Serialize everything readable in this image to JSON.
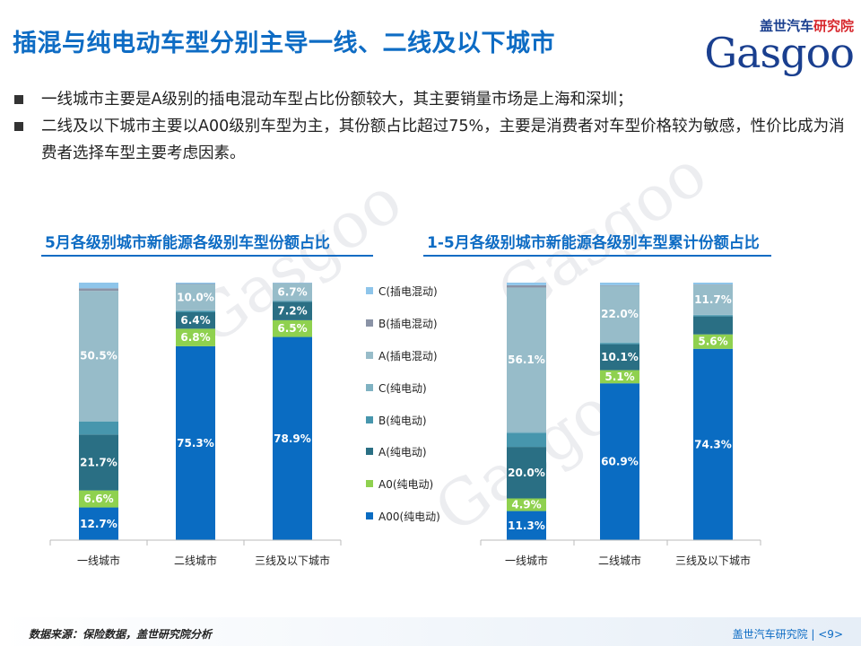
{
  "title": "插混与纯电动车型分别主导一线、二线及以下城市",
  "logo": {
    "brand": "盖世汽车",
    "dept": "研究院",
    "word": "Gasgoo"
  },
  "bullets": [
    "一线城市主要是A级别的插电混动车型占比份额较大，其主要销量市场是上海和深圳；",
    "二线及以下城市主要以A00级别车型为主，其份额占比超过75%，主要是消费者对车型价格较为敏感，性价比成为消费者选择车型主要考虑因素。"
  ],
  "source": "数据来源：保险数据，盖世研究院分析",
  "page": "盖世汽车研究院 | <9>",
  "colors": {
    "C(插电混动)": "#8ec5ea",
    "B(插电混动)": "#8a93a6",
    "A(插电混动)": "#97bcc9",
    "C(纯电动)": "#7fb2c2",
    "B(纯电动)": "#4796ad",
    "A(纯电动)": "#2a6f84",
    "A0(纯电动)": "#8fd14f",
    "A00(纯电动)": "#0a6cc2"
  },
  "legend": [
    "C(插电混动)",
    "B(插电混动)",
    "A(插电混动)",
    "C(纯电动)",
    "B(纯电动)",
    "A(纯电动)",
    "A0(纯电动)",
    "A00(纯电动)"
  ],
  "chart_data": [
    {
      "type": "bar",
      "stacked": true,
      "percent": true,
      "title": "5月各级别城市新能源各级别车型份额占比",
      "categories": [
        "一线城市",
        "二线城市",
        "三线及以下城市"
      ],
      "ylim": [
        0,
        100
      ],
      "series": [
        {
          "name": "A00(纯电动)",
          "values": [
            12.7,
            75.3,
            78.9
          ]
        },
        {
          "name": "A0(纯电动)",
          "values": [
            6.6,
            6.8,
            6.5
          ]
        },
        {
          "name": "A(纯电动)",
          "values": [
            21.7,
            6.4,
            7.2
          ]
        },
        {
          "name": "B(纯电动)",
          "values": [
            5.0,
            0.5,
            0.3
          ]
        },
        {
          "name": "C(纯电动)",
          "values": [
            0.3,
            0.3,
            0.1
          ]
        },
        {
          "name": "A(插电混动)",
          "values": [
            50.5,
            10.0,
            6.7
          ]
        },
        {
          "name": "B(插电混动)",
          "values": [
            1.0,
            0.2,
            0.1
          ]
        },
        {
          "name": "C(插电混动)",
          "values": [
            2.2,
            0.5,
            0.2
          ]
        }
      ],
      "labels": [
        [
          "12.7%",
          "75.3%",
          "78.9%"
        ],
        [
          "6.6%",
          "6.8%",
          "6.5%"
        ],
        [
          "21.7%",
          "6.4%",
          "7.2%"
        ],
        [
          "",
          "",
          ""
        ],
        [
          "",
          "",
          ""
        ],
        [
          "50.5%",
          "10.0%",
          "6.7%"
        ],
        [
          "",
          "",
          ""
        ],
        [
          "",
          "",
          ""
        ]
      ]
    },
    {
      "type": "bar",
      "stacked": true,
      "percent": true,
      "title": "1-5月各级别城市新能源各级别车型累计份额占比",
      "categories": [
        "一线城市",
        "二线城市",
        "三线及以下城市"
      ],
      "ylim": [
        0,
        100
      ],
      "series": [
        {
          "name": "A00(纯电动)",
          "values": [
            11.3,
            60.9,
            74.3
          ]
        },
        {
          "name": "A0(纯电动)",
          "values": [
            4.9,
            5.1,
            5.6
          ]
        },
        {
          "name": "A(纯电动)",
          "values": [
            20.0,
            10.1,
            7.0
          ]
        },
        {
          "name": "B(纯电动)",
          "values": [
            5.5,
            0.5,
            0.5
          ]
        },
        {
          "name": "C(纯电动)",
          "values": [
            0.3,
            0.2,
            0.1
          ]
        },
        {
          "name": "A(插电混动)",
          "values": [
            56.1,
            22.0,
            11.7
          ]
        },
        {
          "name": "B(插电混动)",
          "values": [
            0.9,
            0.2,
            0.1
          ]
        },
        {
          "name": "C(插电混动)",
          "values": [
            1.0,
            1.0,
            0.7
          ]
        }
      ],
      "labels": [
        [
          "11.3%",
          "60.9%",
          "74.3%"
        ],
        [
          "4.9%",
          "5.1%",
          "5.6%"
        ],
        [
          "20.0%",
          "10.1%",
          ""
        ],
        [
          "",
          "",
          ""
        ],
        [
          "",
          "",
          ""
        ],
        [
          "56.1%",
          "22.0%",
          "11.7%"
        ],
        [
          "",
          "",
          ""
        ],
        [
          "",
          "",
          ""
        ]
      ]
    }
  ]
}
